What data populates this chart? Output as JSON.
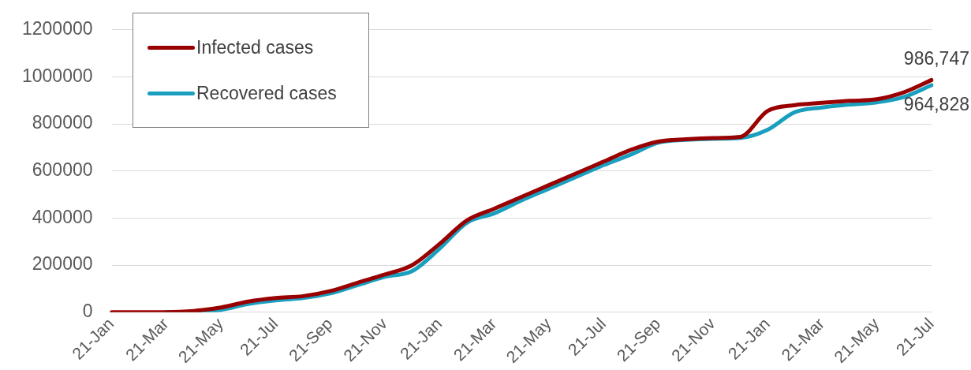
{
  "chart_data": {
    "type": "line",
    "categories": [
      "21-Jan",
      null,
      "21-Mar",
      null,
      "21-May",
      null,
      "21-Jul",
      null,
      "21-Sep",
      null,
      "21-Nov",
      null,
      "21-Jan",
      null,
      "21-Mar",
      null,
      "21-May",
      null,
      "21-Jul",
      null,
      "21-Sep",
      null,
      "21-Nov",
      null,
      "21-Jan",
      null,
      "21-Mar",
      null,
      "21-May",
      null,
      "21-Jul"
    ],
    "series": [
      {
        "name": "Infected cases",
        "color": "#990000",
        "values": [
          0,
          0,
          0,
          5000,
          20000,
          45000,
          60000,
          68000,
          90000,
          125000,
          160000,
          200000,
          290000,
          390000,
          440000,
          490000,
          540000,
          590000,
          640000,
          690000,
          725000,
          735000,
          740000,
          745000,
          855000,
          880000,
          890000,
          898000,
          905000,
          935000,
          986747
        ],
        "value_labels": [
          null,
          null,
          null,
          null,
          null,
          null,
          null,
          null,
          null,
          null,
          null,
          null,
          null,
          null,
          null,
          null,
          null,
          null,
          null,
          null,
          null,
          null,
          null,
          null,
          null,
          null,
          null,
          null,
          null,
          null,
          "986,747"
        ]
      },
      {
        "name": "Recovered cases",
        "color": "#1a9fbf",
        "values": [
          null,
          null,
          0,
          0,
          10000,
          35000,
          50000,
          60000,
          80000,
          115000,
          150000,
          175000,
          270000,
          380000,
          420000,
          475000,
          525000,
          575000,
          625000,
          670000,
          720000,
          732000,
          737000,
          740000,
          775000,
          850000,
          870000,
          882000,
          892000,
          915000,
          964828
        ],
        "value_labels": [
          null,
          null,
          null,
          null,
          null,
          null,
          null,
          null,
          null,
          null,
          null,
          null,
          null,
          null,
          null,
          null,
          null,
          null,
          null,
          null,
          null,
          null,
          null,
          null,
          null,
          null,
          null,
          null,
          null,
          null,
          "964,828"
        ]
      }
    ],
    "ylim": [
      0,
      1200000
    ],
    "yticks": [
      0,
      200000,
      400000,
      600000,
      800000,
      1000000,
      1200000
    ],
    "grid": "y",
    "legend": "top left",
    "marker": "none",
    "line_style": "solid"
  }
}
